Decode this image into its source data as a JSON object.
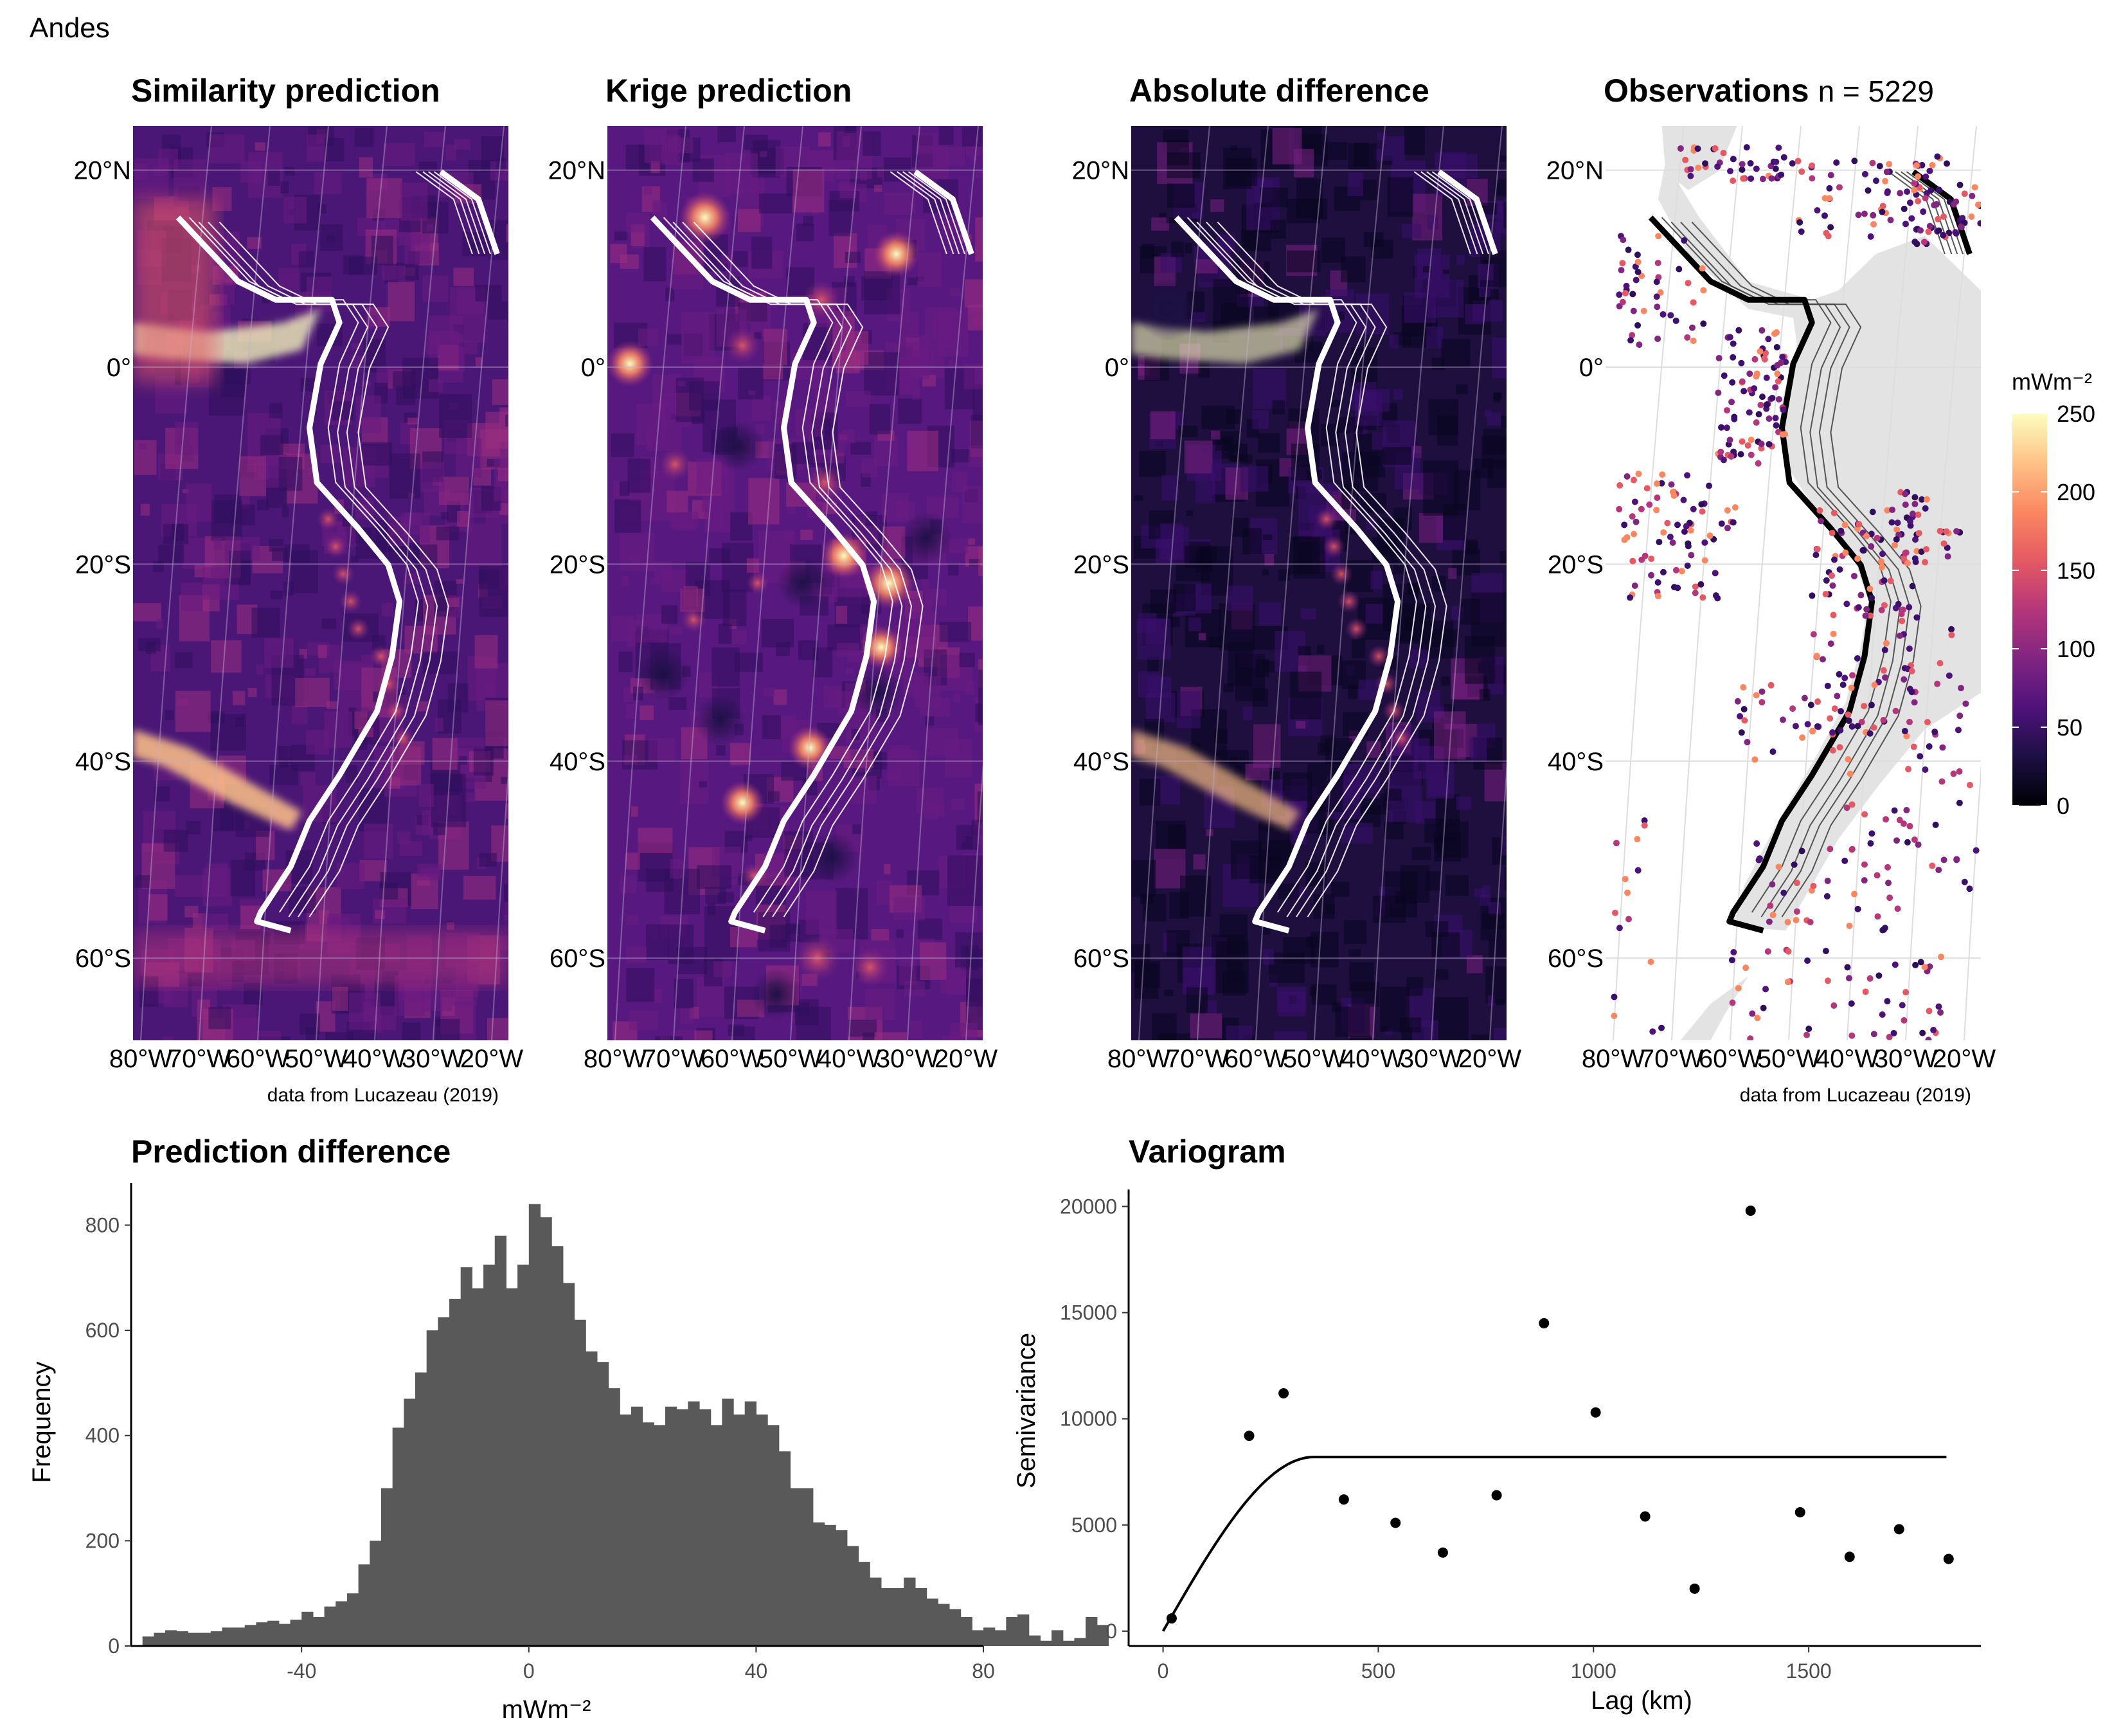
{
  "page": {
    "title": "Andes"
  },
  "maps": {
    "attribution": "data from Lucazeau (2019)",
    "lat_labels": [
      "20°N",
      "0°",
      "20°S",
      "40°S",
      "60°S"
    ],
    "lat_values": [
      20,
      0,
      -20,
      -40,
      -60
    ],
    "lon_labels": [
      "80°W",
      "70°W",
      "60°W",
      "50°W",
      "40°W",
      "30°W",
      "20°W"
    ],
    "lon_values": [
      -80,
      -70,
      -60,
      -50,
      -40,
      -30,
      -20
    ],
    "panels": [
      {
        "title": "Similarity prediction",
        "subtitle": "",
        "kind": "similarity"
      },
      {
        "title": "Krige prediction",
        "subtitle": "",
        "kind": "krige"
      },
      {
        "title": "Absolute difference",
        "subtitle": "",
        "kind": "difference"
      },
      {
        "title": "Observations",
        "subtitle": "n = 5229",
        "kind": "observations"
      }
    ],
    "colorbar": {
      "title": "mWm⁻²",
      "ticks": [
        0,
        50,
        100,
        150,
        200,
        250
      ],
      "range": [
        0,
        250
      ],
      "palette": [
        "#000004",
        "#1c1044",
        "#4f127b",
        "#812581",
        "#b5367a",
        "#e55964",
        "#fb8761",
        "#fec287",
        "#fcfdbf"
      ]
    }
  },
  "chart_data": [
    {
      "type": "bar",
      "title": "Prediction difference",
      "xlabel": "mWm⁻²",
      "ylabel": "Frequency",
      "xlim": [
        -70,
        80
      ],
      "ylim": [
        0,
        880
      ],
      "xticks": [
        -40,
        0,
        40,
        80
      ],
      "yticks": [
        0,
        200,
        400,
        600,
        800
      ],
      "bin_width": 2,
      "bin_start": -68,
      "values": [
        18,
        25,
        30,
        28,
        25,
        25,
        28,
        35,
        35,
        40,
        45,
        48,
        42,
        50,
        65,
        55,
        75,
        85,
        100,
        155,
        200,
        300,
        415,
        470,
        520,
        600,
        625,
        660,
        720,
        680,
        725,
        780,
        680,
        725,
        840,
        815,
        760,
        690,
        620,
        560,
        540,
        490,
        440,
        455,
        425,
        420,
        455,
        450,
        465,
        450,
        420,
        470,
        440,
        465,
        440,
        420,
        370,
        300,
        300,
        235,
        230,
        220,
        190,
        160,
        130,
        110,
        110,
        130,
        110,
        90,
        80,
        70,
        55,
        30,
        35,
        30,
        55,
        60,
        20,
        10,
        30,
        10,
        15,
        55,
        40
      ]
    },
    {
      "type": "scatter",
      "title": "Variogram",
      "xlabel": "Lag (km)",
      "ylabel": "Semivariance",
      "xlim": [
        -80,
        1900
      ],
      "ylim": [
        -700,
        20800
      ],
      "xticks": [
        0,
        500,
        1000,
        1500
      ],
      "yticks": [
        0,
        5000,
        10000,
        15000,
        20000
      ],
      "points": [
        {
          "x": 20,
          "y": 600
        },
        {
          "x": 200,
          "y": 9200
        },
        {
          "x": 280,
          "y": 11200
        },
        {
          "x": 420,
          "y": 6200
        },
        {
          "x": 540,
          "y": 5100
        },
        {
          "x": 650,
          "y": 3700
        },
        {
          "x": 775,
          "y": 6400
        },
        {
          "x": 885,
          "y": 14500
        },
        {
          "x": 1005,
          "y": 10300
        },
        {
          "x": 1120,
          "y": 5400
        },
        {
          "x": 1235,
          "y": 2000
        },
        {
          "x": 1365,
          "y": 19800
        },
        {
          "x": 1480,
          "y": 5600
        },
        {
          "x": 1595,
          "y": 3500
        },
        {
          "x": 1710,
          "y": 4800
        },
        {
          "x": 1825,
          "y": 3400
        }
      ],
      "model": {
        "type": "spherical",
        "nugget": 0,
        "sill": 8200,
        "range": 350,
        "xmax": 1825
      }
    }
  ]
}
